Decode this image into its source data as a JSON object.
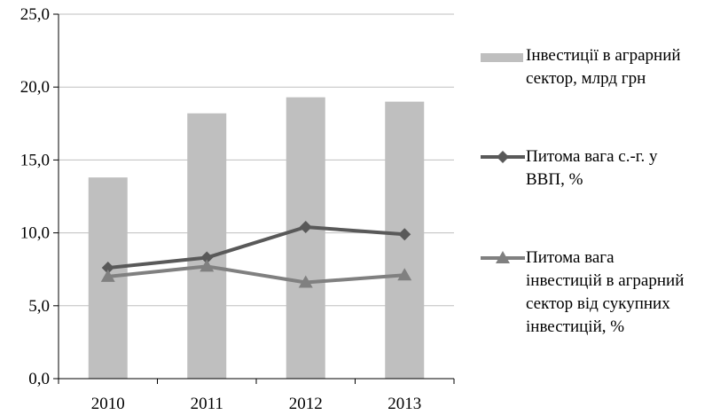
{
  "chart_data": {
    "type": "bar",
    "categories": [
      "2010",
      "2011",
      "2012",
      "2013"
    ],
    "ylim": [
      0,
      25
    ],
    "yticks": [
      "0,0",
      "5,0",
      "10,0",
      "15,0",
      "20,0",
      "25,0"
    ],
    "ytick_values": [
      0,
      5,
      10,
      15,
      20,
      25
    ],
    "grid": true,
    "legend_position": "right",
    "series": [
      {
        "name": "Інвестиції  в аграрний\nсектор, млрд грн",
        "kind": "bar",
        "values": [
          13.8,
          18.2,
          19.3,
          19.0
        ],
        "color": "#bfbfbf"
      },
      {
        "name": "Питома вага с.-г. у\nВВП, %",
        "kind": "line",
        "marker": "diamond",
        "values": [
          7.6,
          8.3,
          10.4,
          9.9
        ],
        "color": "#595959"
      },
      {
        "name": "Питома вага\nінвестицій в аграрний\nсектор від сукупних\nінвестицій,  %",
        "kind": "line",
        "marker": "triangle",
        "values": [
          7.0,
          7.7,
          6.6,
          7.1
        ],
        "color": "#808080"
      }
    ]
  }
}
